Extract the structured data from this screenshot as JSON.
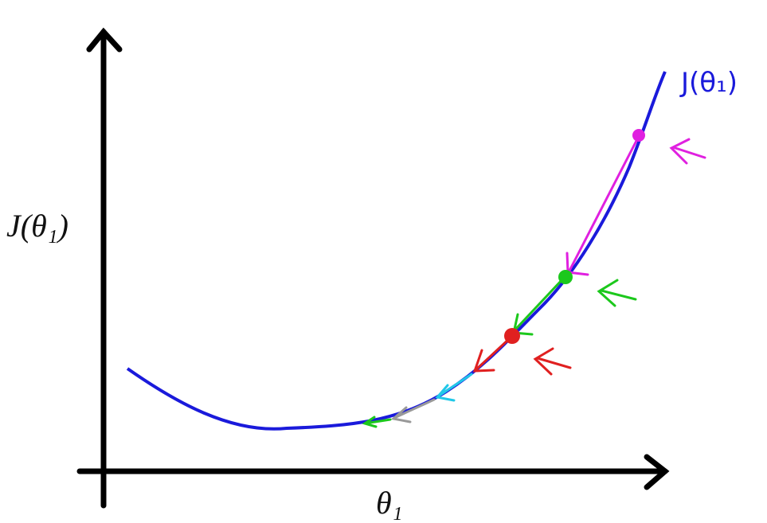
{
  "y_axis_label": "J(θ₁)",
  "x_axis_label": "θ₁",
  "curve_label": "J(θ₁)"
}
